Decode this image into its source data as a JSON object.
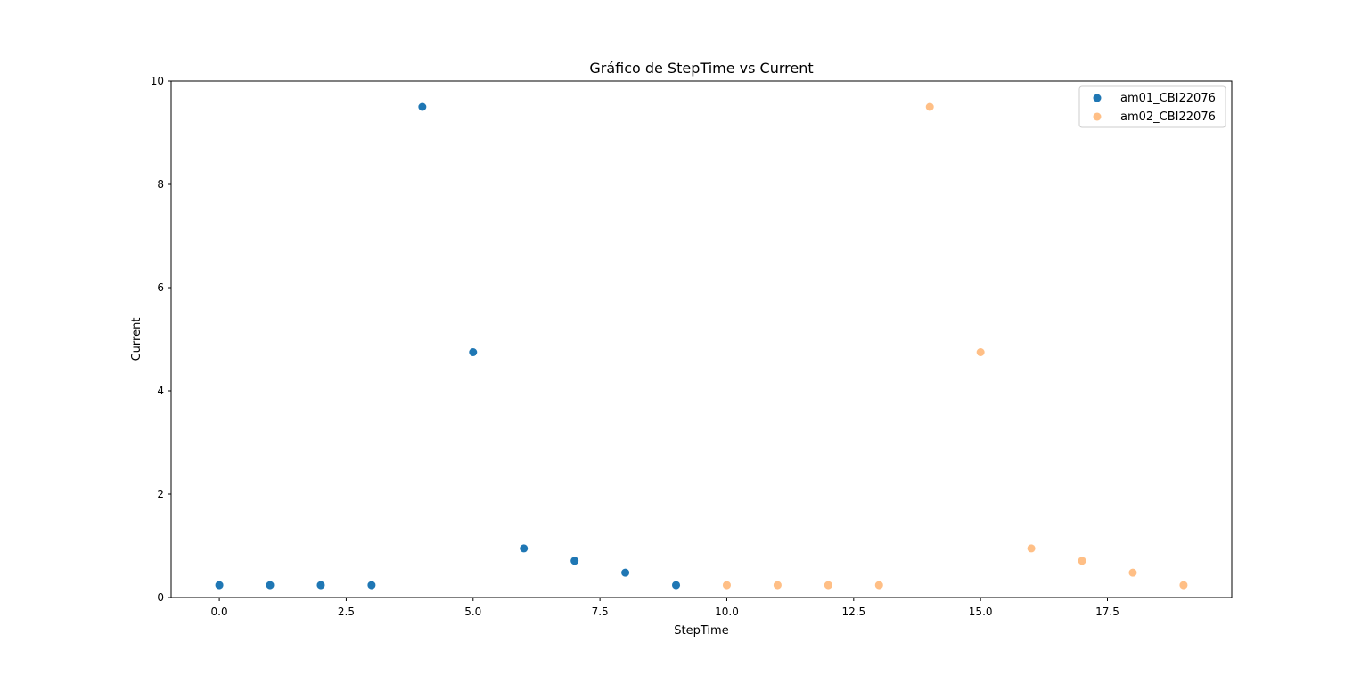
{
  "chart_data": {
    "type": "scatter",
    "title": "Gráfico de StepTime vs Current",
    "xlabel": "StepTime",
    "ylabel": "Current",
    "xlim": [
      -0.95,
      19.95
    ],
    "ylim": [
      0,
      10
    ],
    "xticks": [
      0.0,
      2.5,
      5.0,
      7.5,
      10.0,
      12.5,
      15.0,
      17.5
    ],
    "xtick_labels": [
      "0.0",
      "2.5",
      "5.0",
      "7.5",
      "10.0",
      "12.5",
      "15.0",
      "17.5"
    ],
    "yticks": [
      0,
      2,
      4,
      6,
      8,
      10
    ],
    "ytick_labels": [
      "0",
      "2",
      "4",
      "6",
      "8",
      "10"
    ],
    "grid": false,
    "legend_position": "top-right",
    "series": [
      {
        "name": "am01_CBI22076",
        "color": "#1f77b4",
        "opacity": 1.0,
        "x": [
          0,
          1,
          2,
          3,
          4,
          5,
          6,
          7,
          8,
          9
        ],
        "y": [
          0.24,
          0.24,
          0.24,
          0.24,
          9.5,
          4.75,
          0.95,
          0.71,
          0.48,
          0.24
        ]
      },
      {
        "name": "am02_CBI22076",
        "color": "#ff7f0e",
        "opacity": 0.5,
        "x": [
          10,
          11,
          12,
          13,
          14,
          15,
          16,
          17,
          18,
          19
        ],
        "y": [
          0.24,
          0.24,
          0.24,
          0.24,
          9.5,
          4.75,
          0.95,
          0.71,
          0.48,
          0.24
        ]
      }
    ]
  }
}
